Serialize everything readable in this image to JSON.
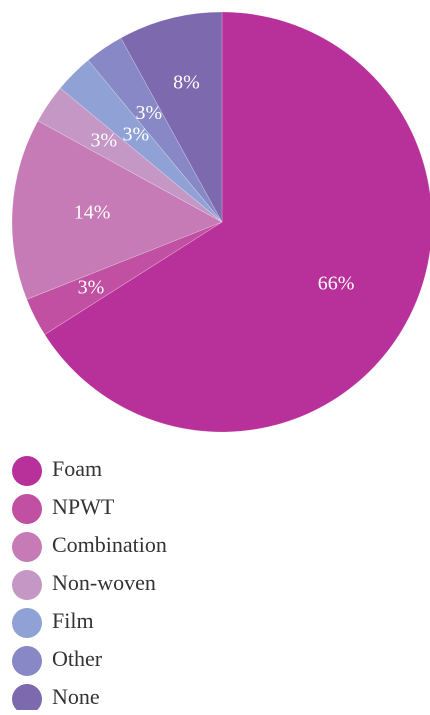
{
  "chart_data": {
    "type": "pie",
    "categories": [
      "Foam",
      "NPWT",
      "Combination",
      "Non-woven",
      "Film",
      "Other",
      "None"
    ],
    "values": [
      66,
      3,
      14,
      3,
      3,
      3,
      8
    ],
    "value_labels": [
      "66%",
      "3%",
      "14%",
      "3%",
      "3%",
      "3%",
      "8%"
    ],
    "colors": [
      "#b8309a",
      "#c250a2",
      "#c77bb6",
      "#c597c5",
      "#8fa1d5",
      "#8788c5",
      "#7d6aae"
    ],
    "legend": "bottom"
  }
}
